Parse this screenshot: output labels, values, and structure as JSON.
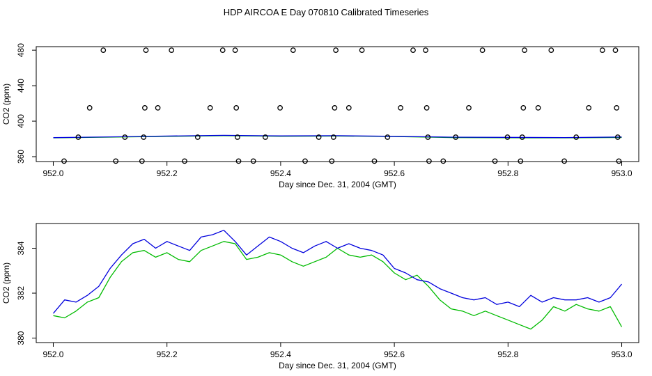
{
  "title": "HDP AIRCOA E  Day 070810  Calibrated Timeseries",
  "colors": {
    "series_a": "#0000dd",
    "series_b": "#00bb00",
    "points": "#000000",
    "axes": "#000000"
  },
  "chart_data": [
    {
      "type": "scatter",
      "xlabel": "Day since Dec. 31, 2004 (GMT)",
      "ylabel": "CO2 (ppm)",
      "xlim": [
        951.97,
        953.03
      ],
      "ylim": [
        354.5,
        484
      ],
      "xticks": [
        952.0,
        952.2,
        952.4,
        952.6,
        952.8,
        953.0
      ],
      "xtick_labels": [
        "952.0",
        "952.2",
        "952.4",
        "952.6",
        "952.8",
        "953.0"
      ],
      "yticks": [
        360,
        400,
        440,
        480
      ],
      "ytick_labels": [
        "360",
        "400",
        "440",
        "480"
      ],
      "grid": false,
      "points": [
        [
          952.019,
          355
        ],
        [
          952.044,
          382
        ],
        [
          952.064,
          415
        ],
        [
          952.088,
          480
        ],
        [
          952.11,
          355
        ],
        [
          952.126,
          382
        ],
        [
          952.156,
          355
        ],
        [
          952.159,
          382
        ],
        [
          952.161,
          415
        ],
        [
          952.163,
          480
        ],
        [
          952.184,
          415
        ],
        [
          952.208,
          480
        ],
        [
          952.231,
          355
        ],
        [
          952.254,
          382
        ],
        [
          952.276,
          415
        ],
        [
          952.298,
          480
        ],
        [
          952.32,
          480
        ],
        [
          952.322,
          415
        ],
        [
          952.324,
          382
        ],
        [
          952.326,
          355
        ],
        [
          952.352,
          355
        ],
        [
          952.373,
          382
        ],
        [
          952.399,
          415
        ],
        [
          952.422,
          480
        ],
        [
          952.443,
          355
        ],
        [
          952.467,
          382
        ],
        [
          952.49,
          355
        ],
        [
          952.493,
          382
        ],
        [
          952.495,
          415
        ],
        [
          952.497,
          480
        ],
        [
          952.52,
          415
        ],
        [
          952.543,
          480
        ],
        [
          952.565,
          355
        ],
        [
          952.588,
          382
        ],
        [
          952.611,
          415
        ],
        [
          952.633,
          480
        ],
        [
          952.655,
          480
        ],
        [
          952.657,
          415
        ],
        [
          952.659,
          382
        ],
        [
          952.661,
          355
        ],
        [
          952.686,
          355
        ],
        [
          952.708,
          382
        ],
        [
          952.731,
          415
        ],
        [
          952.755,
          480
        ],
        [
          952.777,
          355
        ],
        [
          952.799,
          382
        ],
        [
          952.822,
          355
        ],
        [
          952.825,
          382
        ],
        [
          952.827,
          415
        ],
        [
          952.829,
          480
        ],
        [
          952.853,
          415
        ],
        [
          952.876,
          480
        ],
        [
          952.899,
          355
        ],
        [
          952.92,
          382
        ],
        [
          952.942,
          415
        ],
        [
          952.966,
          480
        ],
        [
          952.989,
          480
        ],
        [
          952.991,
          415
        ],
        [
          952.993,
          382
        ],
        [
          952.995,
          355
        ]
      ],
      "line_series": [
        {
          "x": [
            952.0,
            952.1,
            952.2,
            952.3,
            952.4,
            952.5,
            952.6,
            952.7,
            952.8,
            952.9,
            953.0
          ],
          "values": [
            381.4,
            382.3,
            383.2,
            384.0,
            383.4,
            383.6,
            382.9,
            382.0,
            381.7,
            381.5,
            382.1
          ]
        },
        {
          "x": [
            952.0,
            952.1,
            952.2,
            952.3,
            952.4,
            952.5,
            952.6,
            952.7,
            952.8,
            952.9,
            953.0
          ],
          "values": [
            381.2,
            382.0,
            382.8,
            383.6,
            383.0,
            383.3,
            382.7,
            381.5,
            381.3,
            381.2,
            381.6
          ]
        }
      ]
    },
    {
      "type": "line",
      "xlabel": "Day since Dec. 31, 2004 (GMT)",
      "ylabel": "CO2 (ppm)",
      "xlim": [
        951.97,
        953.03
      ],
      "ylim": [
        379.8,
        385.1
      ],
      "xticks": [
        952.0,
        952.2,
        952.4,
        952.6,
        952.8,
        953.0
      ],
      "xtick_labels": [
        "952.0",
        "952.2",
        "952.4",
        "952.6",
        "952.8",
        "953.0"
      ],
      "yticks": [
        380,
        382,
        384
      ],
      "ytick_labels": [
        "380",
        "382",
        "384"
      ],
      "grid": false,
      "series": [
        {
          "x": [
            952.0,
            952.02,
            952.04,
            952.06,
            952.08,
            952.1,
            952.12,
            952.14,
            952.16,
            952.18,
            952.2,
            952.22,
            952.24,
            952.26,
            952.28,
            952.3,
            952.32,
            952.34,
            952.36,
            952.38,
            952.4,
            952.42,
            952.44,
            952.46,
            952.48,
            952.5,
            952.52,
            952.54,
            952.56,
            952.58,
            952.6,
            952.62,
            952.64,
            952.66,
            952.68,
            952.7,
            952.72,
            952.74,
            952.76,
            952.78,
            952.8,
            952.82,
            952.84,
            952.86,
            952.88,
            952.9,
            952.92,
            952.94,
            952.96,
            952.98,
            953.0
          ],
          "values": [
            381.1,
            381.7,
            381.6,
            381.9,
            382.3,
            383.1,
            383.7,
            384.2,
            384.4,
            384.0,
            384.3,
            384.1,
            383.9,
            384.5,
            384.6,
            384.8,
            384.3,
            383.7,
            384.1,
            384.5,
            384.3,
            384.0,
            383.8,
            384.1,
            384.3,
            384.0,
            384.2,
            384.0,
            383.9,
            383.7,
            383.1,
            382.9,
            382.6,
            382.5,
            382.2,
            382.0,
            381.8,
            381.7,
            381.8,
            381.5,
            381.6,
            381.4,
            381.9,
            381.6,
            381.8,
            381.7,
            381.7,
            381.8,
            381.6,
            381.8,
            382.4
          ]
        },
        {
          "x": [
            952.0,
            952.02,
            952.04,
            952.06,
            952.08,
            952.1,
            952.12,
            952.14,
            952.16,
            952.18,
            952.2,
            952.22,
            952.24,
            952.26,
            952.28,
            952.3,
            952.32,
            952.34,
            952.36,
            952.38,
            952.4,
            952.42,
            952.44,
            952.46,
            952.48,
            952.5,
            952.52,
            952.54,
            952.56,
            952.58,
            952.6,
            952.62,
            952.64,
            952.66,
            952.68,
            952.7,
            952.72,
            952.74,
            952.76,
            952.78,
            952.8,
            952.82,
            952.84,
            952.86,
            952.88,
            952.9,
            952.92,
            952.94,
            952.96,
            952.98,
            953.0
          ],
          "values": [
            381.0,
            380.9,
            381.2,
            381.6,
            381.8,
            382.7,
            383.4,
            383.8,
            383.9,
            383.6,
            383.8,
            383.5,
            383.4,
            383.9,
            384.1,
            384.3,
            384.2,
            383.5,
            383.6,
            383.8,
            383.7,
            383.4,
            383.2,
            383.4,
            383.6,
            384.0,
            383.7,
            383.6,
            383.7,
            383.4,
            382.9,
            382.6,
            382.8,
            382.3,
            381.7,
            381.3,
            381.2,
            381.0,
            381.2,
            381.0,
            380.8,
            380.6,
            380.4,
            380.8,
            381.4,
            381.2,
            381.5,
            381.3,
            381.2,
            381.4,
            380.5
          ]
        }
      ]
    }
  ]
}
